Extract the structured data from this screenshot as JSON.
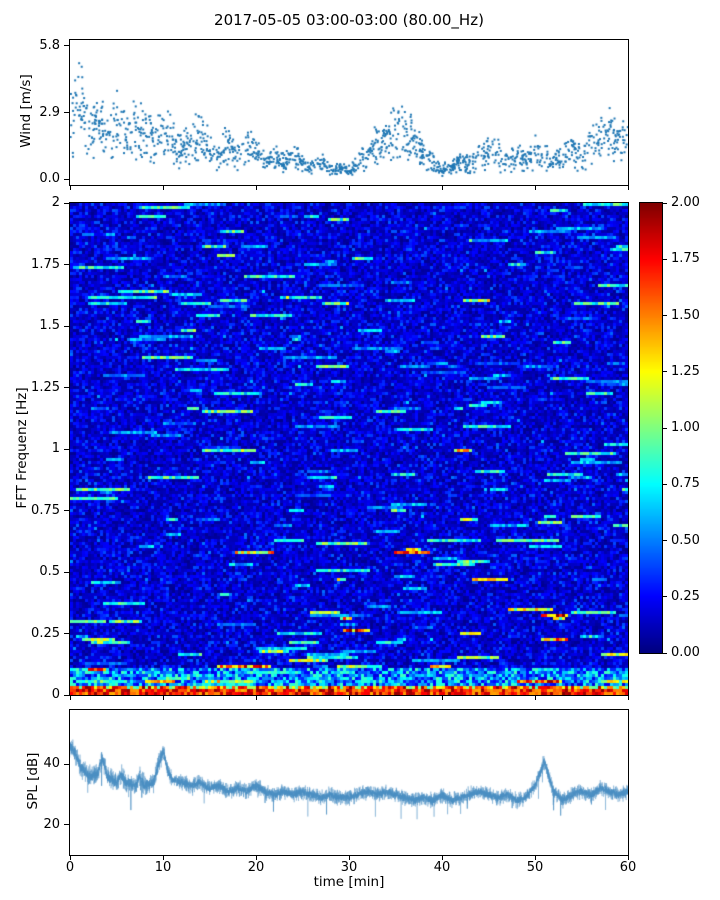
{
  "figure": {
    "title": "2017-05-05 03:00-03:00 (80.00_Hz)",
    "xlabel": "time [min]",
    "x_ticks": [
      0,
      10,
      20,
      30,
      40,
      50,
      60
    ],
    "x_tick_labels": [
      "0",
      "10",
      "20",
      "30",
      "40",
      "50",
      "60"
    ],
    "background_color": "#ffffff",
    "axis_color": "#000000"
  },
  "chart_data": [
    {
      "type": "scatter",
      "ylabel": "Wind [m/s]",
      "xlim": [
        0,
        60
      ],
      "ylim": [
        -0.25,
        6.05
      ],
      "y_ticks": [
        0.0,
        2.9,
        5.8
      ],
      "y_tick_labels": [
        "0.0",
        "2.9",
        "5.8"
      ],
      "marker_color": "#1f77b4",
      "n_points": 1400,
      "trend_x": [
        0,
        1,
        2,
        3,
        4,
        5,
        6,
        8,
        9,
        10,
        12,
        14,
        15,
        16,
        17,
        18,
        19,
        20,
        21,
        22,
        23,
        24,
        25,
        26,
        27,
        28,
        29,
        30,
        31,
        32,
        33,
        34,
        35,
        36,
        37,
        38,
        39,
        40,
        41,
        42,
        43,
        44,
        45,
        46,
        47,
        48,
        49,
        50,
        51,
        52,
        53,
        54,
        55,
        56,
        57,
        58,
        59,
        60
      ],
      "trend_y": [
        2.4,
        3.6,
        2.0,
        2.6,
        1.8,
        2.6,
        2.0,
        2.4,
        1.6,
        2.2,
        1.3,
        2.0,
        1.3,
        1.0,
        1.6,
        1.0,
        1.5,
        1.2,
        0.8,
        1.1,
        0.7,
        1.1,
        0.8,
        0.5,
        0.8,
        0.4,
        0.5,
        0.4,
        0.7,
        1.1,
        1.5,
        1.9,
        2.1,
        2.2,
        1.7,
        1.2,
        0.8,
        0.4,
        0.5,
        0.9,
        0.6,
        1.1,
        1.3,
        1.2,
        0.9,
        1.1,
        0.8,
        1.2,
        1.0,
        0.8,
        1.1,
        1.3,
        1.0,
        1.5,
        1.8,
        2.1,
        1.7,
        1.9
      ]
    },
    {
      "type": "heatmap",
      "ylabel": "FFT Frequenz [Hz]",
      "xlim": [
        0,
        60
      ],
      "ylim": [
        0,
        2
      ],
      "y_ticks": [
        0,
        0.25,
        0.5,
        0.75,
        1,
        1.25,
        1.5,
        1.75,
        2
      ],
      "y_tick_labels": [
        "0",
        "0.25",
        "0.5",
        "0.75",
        "1",
        "1.25",
        "1.5",
        "1.75",
        "2"
      ],
      "colormap": "jet",
      "value_range": [
        0,
        2
      ],
      "colorbar_ticks": [
        0,
        0.25,
        0.5,
        0.75,
        1,
        1.25,
        1.5,
        1.75,
        2
      ],
      "colorbar_tick_labels": [
        "0.00",
        "0.25",
        "0.50",
        "0.75",
        "1.00",
        "1.25",
        "1.50",
        "1.75",
        "2.00"
      ],
      "base_level": 0.16,
      "bottom_band_freq": 0.035,
      "grid": {
        "cols": 186,
        "rows": 164
      },
      "features": [
        {
          "x_start": 0,
          "x_end": 5,
          "freq": 0.8,
          "value": 0.9
        },
        {
          "x_start": 0,
          "x_end": 3.5,
          "freq": 0.3,
          "value": 1.0
        },
        {
          "x_start": 2,
          "x_end": 6,
          "freq": 1.62,
          "value": 0.8
        },
        {
          "x_start": 8,
          "x_end": 11,
          "freq": 0.05,
          "value": 1.4
        },
        {
          "x_start": 12,
          "x_end": 15,
          "freq": 1.6,
          "value": 0.8
        },
        {
          "x_start": 22,
          "x_end": 25,
          "freq": 0.62,
          "value": 0.85
        },
        {
          "x_start": 26,
          "x_end": 29,
          "freq": 0.33,
          "value": 1.15
        },
        {
          "x_start": 27,
          "x_end": 30,
          "freq": 1.13,
          "value": 0.85
        },
        {
          "x_start": 33,
          "x_end": 36,
          "freq": 1.15,
          "value": 0.9
        },
        {
          "x_start": 35,
          "x_end": 38.5,
          "freq": 0.58,
          "value": 1.6
        },
        {
          "x_start": 36,
          "x_end": 38,
          "freq": 1.08,
          "value": 0.8
        },
        {
          "x_start": 42,
          "x_end": 44,
          "freq": 0.25,
          "value": 1.2
        },
        {
          "x_start": 43.5,
          "x_end": 47,
          "freq": 0.47,
          "value": 1.5
        },
        {
          "x_start": 46,
          "x_end": 49,
          "freq": 0.63,
          "value": 1.0
        },
        {
          "x_start": 49,
          "x_end": 52.5,
          "freq": 0.62,
          "value": 0.95
        },
        {
          "x_start": 54,
          "x_end": 57,
          "freq": 0.73,
          "value": 0.9
        }
      ]
    },
    {
      "type": "line",
      "ylabel": "SPL [dB]",
      "xlim": [
        0,
        60
      ],
      "ylim": [
        10,
        58
      ],
      "y_ticks": [
        20,
        40
      ],
      "y_tick_labels": [
        "20",
        "40"
      ],
      "line_color": "#4a8fc2",
      "noise": 3.0,
      "trend_x": [
        0,
        0.5,
        1,
        2,
        3,
        3.5,
        4,
        5,
        5.5,
        6,
        7,
        7.5,
        8,
        9,
        10,
        10.5,
        11,
        12,
        13,
        14,
        15,
        16,
        17,
        18,
        19,
        20,
        21,
        22,
        23,
        24,
        25,
        26,
        27,
        28,
        29,
        30,
        31,
        32,
        33,
        34,
        35,
        36,
        37,
        38,
        39,
        40,
        41,
        42,
        43,
        44,
        45,
        46,
        47,
        48,
        49,
        50,
        51,
        51.5,
        52,
        53,
        54,
        55,
        56,
        57,
        58,
        59,
        60
      ],
      "trend_y": [
        46,
        44,
        40,
        36,
        37,
        42,
        36,
        34,
        37,
        34,
        33,
        36,
        33,
        34,
        45,
        38,
        35,
        34,
        33,
        34,
        32,
        33,
        31,
        32,
        31,
        33,
        31,
        30,
        31,
        30,
        31,
        30,
        29,
        30,
        29,
        29,
        30,
        31,
        30,
        31,
        30,
        29,
        28,
        29,
        28,
        30,
        28,
        29,
        30,
        31,
        30,
        29,
        30,
        28,
        29,
        33,
        41,
        36,
        31,
        28,
        30,
        31,
        30,
        32,
        31,
        30,
        31
      ]
    }
  ]
}
